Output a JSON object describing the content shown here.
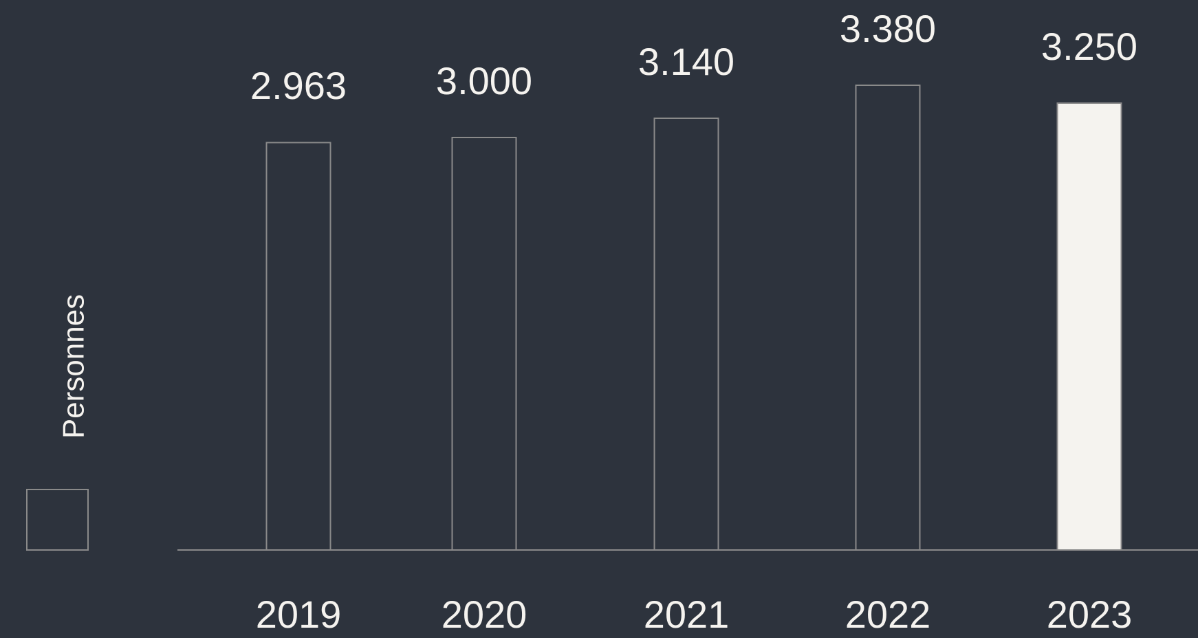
{
  "chart_data": {
    "type": "bar",
    "categories": [
      "2019",
      "2020",
      "2021",
      "2022",
      "2023"
    ],
    "series": [
      {
        "name": "Personnes",
        "colors": [
          "#2d333d",
          "#2d333d",
          "#2d333d",
          "#2d333d",
          "#f5f3ef"
        ],
        "values": [
          2963,
          3000,
          3140,
          3380,
          3250
        ],
        "value_labels": [
          "2.963",
          "3.000",
          "3.140",
          "3.380",
          "3.250"
        ]
      }
    ],
    "ylim": [
      0,
      4000
    ]
  }
}
